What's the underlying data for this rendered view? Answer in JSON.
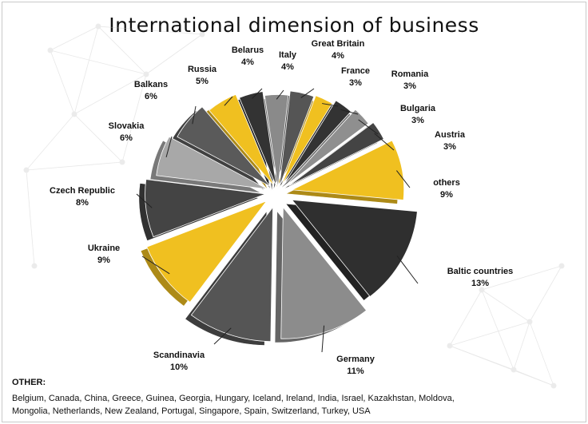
{
  "chart_data": {
    "type": "pie",
    "title": "International dimension of business",
    "slices": [
      {
        "label": "Italy",
        "value": 4,
        "value_label": "4%",
        "color": "#8a8a8a"
      },
      {
        "label": "Great Britain",
        "value": 4,
        "value_label": "4%",
        "color": "#555555"
      },
      {
        "label": "France",
        "value": 3,
        "value_label": "3%",
        "color": "#f0c020"
      },
      {
        "label": "Romania",
        "value": 3,
        "value_label": "3%",
        "color": "#333333"
      },
      {
        "label": "Bulgaria",
        "value": 3,
        "value_label": "3%",
        "color": "#8f8f8f"
      },
      {
        "label": "Austria",
        "value": 3,
        "value_label": "3%",
        "color": "#444444"
      },
      {
        "label": "others",
        "value": 9,
        "value_label": "9%",
        "color": "#f0c020"
      },
      {
        "label": "Baltic countries",
        "value": 13,
        "value_label": "13%",
        "color": "#2f2f2f"
      },
      {
        "label": "Germany",
        "value": 11,
        "value_label": "11%",
        "color": "#8c8c8c"
      },
      {
        "label": "Scandinavia",
        "value": 10,
        "value_label": "10%",
        "color": "#555555"
      },
      {
        "label": "Ukraine",
        "value": 9,
        "value_label": "9%",
        "color": "#f0c020"
      },
      {
        "label": "Czech Republic",
        "value": 8,
        "value_label": "8%",
        "color": "#444444"
      },
      {
        "label": "Slovakia",
        "value": 6,
        "value_label": "6%",
        "color": "#a8a8a8"
      },
      {
        "label": "Balkans",
        "value": 6,
        "value_label": "6%",
        "color": "#5a5a5a"
      },
      {
        "label": "Russia",
        "value": 5,
        "value_label": "5%",
        "color": "#f0c020"
      },
      {
        "label": "Belarus",
        "value": 4,
        "value_label": "4%",
        "color": "#333333"
      }
    ]
  },
  "other": {
    "heading": "OTHER:",
    "line1": "Belgium, Canada, China, Greece, Guinea, Georgia, Hungary, Iceland, Ireland, India, Israel, Kazakhstan, Moldova,",
    "line2": "Mongolia, Netherlands, New Zealand, Portugal, Singapore, Spain, Switzerland, Turkey, USA"
  }
}
